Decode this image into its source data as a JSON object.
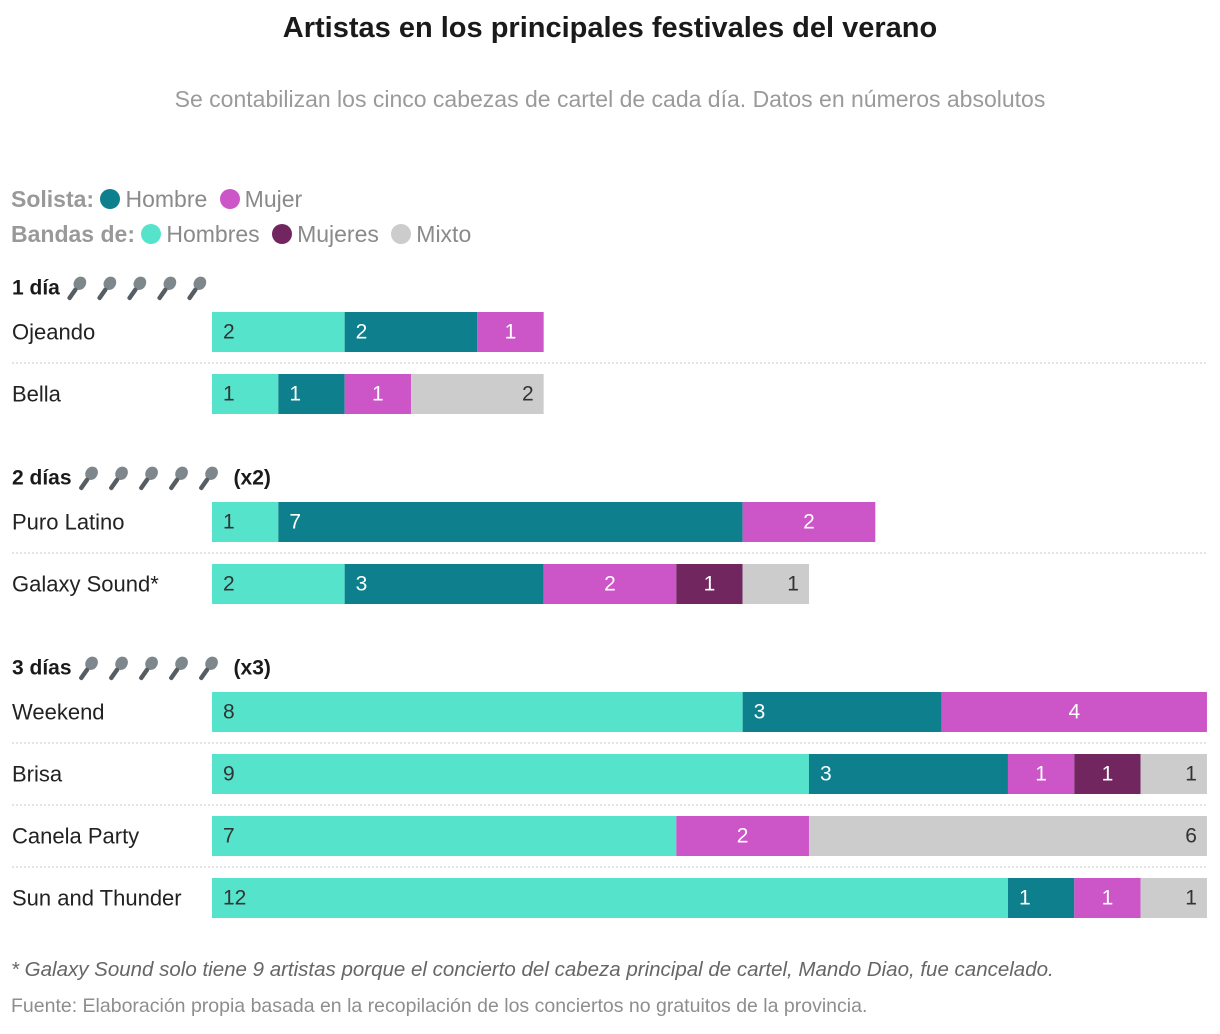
{
  "title": "Artistas en los principales festivales del verano",
  "subtitle": "Se contabilizan los cinco cabezas de cartel de cada día. Datos en números absolutos",
  "legend": {
    "solista_label": "Solista:",
    "bandas_label": "Bandas de:",
    "items": [
      {
        "key": "solo_hombre",
        "label": "Hombre",
        "color": "#0e7f8c"
      },
      {
        "key": "solo_mujer",
        "label": "Mujer",
        "color": "#cc55c8"
      },
      {
        "key": "banda_hombres",
        "label": "Hombres",
        "color": "#55e3cc"
      },
      {
        "key": "banda_mujeres",
        "label": "Mujeres",
        "color": "#722660"
      },
      {
        "key": "mixto",
        "label": "Mixto",
        "color": "#cccccc"
      }
    ]
  },
  "chart_data": {
    "type": "bar",
    "orientation": "horizontal",
    "stacked": true,
    "title": "Artistas en los principales festivales del verano",
    "xlim": [
      0,
      15
    ],
    "series_order": [
      "banda_hombres",
      "solo_hombre",
      "solo_mujer",
      "banda_mujeres",
      "mixto"
    ],
    "groups": [
      {
        "label": "1 día",
        "suffix": "",
        "mic_icons": 5,
        "festivals": [
          {
            "name": "Ojeando",
            "values": {
              "banda_hombres": 2,
              "solo_hombre": 2,
              "solo_mujer": 1,
              "banda_mujeres": 0,
              "mixto": 0
            }
          },
          {
            "name": "Bella",
            "values": {
              "banda_hombres": 1,
              "solo_hombre": 1,
              "solo_mujer": 1,
              "banda_mujeres": 0,
              "mixto": 2
            }
          }
        ]
      },
      {
        "label": "2 días",
        "suffix": "(x2)",
        "mic_icons": 5,
        "festivals": [
          {
            "name": "Puro Latino",
            "values": {
              "banda_hombres": 1,
              "solo_hombre": 7,
              "solo_mujer": 2,
              "banda_mujeres": 0,
              "mixto": 0
            }
          },
          {
            "name": "Galaxy Sound*",
            "values": {
              "banda_hombres": 2,
              "solo_hombre": 3,
              "solo_mujer": 2,
              "banda_mujeres": 1,
              "mixto": 1
            }
          }
        ]
      },
      {
        "label": "3 días",
        "suffix": "(x3)",
        "mic_icons": 5,
        "festivals": [
          {
            "name": "Weekend",
            "values": {
              "banda_hombres": 8,
              "solo_hombre": 3,
              "solo_mujer": 4,
              "banda_mujeres": 0,
              "mixto": 0
            }
          },
          {
            "name": "Brisa",
            "values": {
              "banda_hombres": 9,
              "solo_hombre": 3,
              "solo_mujer": 1,
              "banda_mujeres": 1,
              "mixto": 1
            }
          },
          {
            "name": "Canela Party",
            "values": {
              "banda_hombres": 7,
              "solo_hombre": 0,
              "solo_mujer": 2,
              "banda_mujeres": 0,
              "mixto": 6
            }
          },
          {
            "name": "Sun and Thunder",
            "values": {
              "banda_hombres": 12,
              "solo_hombre": 1,
              "solo_mujer": 1,
              "banda_mujeres": 0,
              "mixto": 1
            }
          }
        ]
      }
    ]
  },
  "footnote": "* Galaxy Sound solo tiene 9 artistas porque el concierto del cabeza principal de cartel, Mando Diao, fue cancelado.",
  "source": "Fuente: Elaboración propia basada en la recopilación de los conciertos no gratuitos de la provincia."
}
